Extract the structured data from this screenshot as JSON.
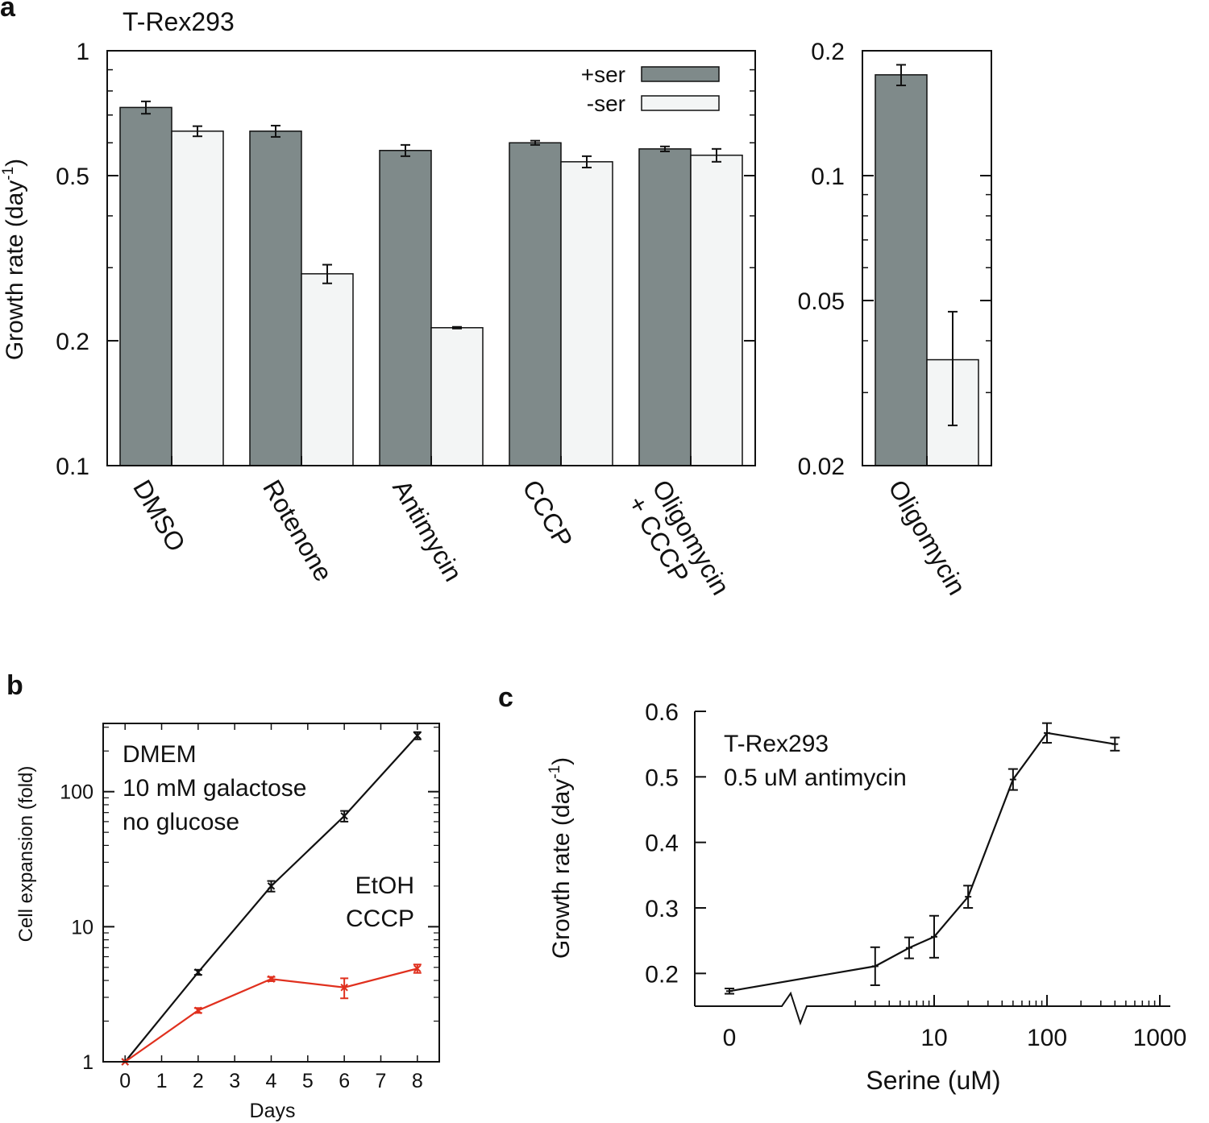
{
  "colors": {
    "plus_ser": "#7f8a8a",
    "minus_ser": "#f3f5f5",
    "etoh": "#111111",
    "cccp": "#e0301e",
    "axis": "#111111"
  },
  "panel_letters": {
    "a": "a",
    "b": "b",
    "c": "c"
  },
  "chart_data": [
    {
      "id": "a_main",
      "type": "bar",
      "title": "T-Rex293",
      "ylabel": "Growth rate (day",
      "ylabel_sup": "-1",
      "ylabel_close": ")",
      "yscale": "log",
      "ylim": [
        0.1,
        1
      ],
      "yticks": [
        0.1,
        0.2,
        0.5,
        1
      ],
      "ytick_labels": [
        "0.1",
        "0.2",
        "0.5",
        "1"
      ],
      "categories": [
        {
          "line1": "DMSO",
          "line2": ""
        },
        {
          "line1": "Rotenone",
          "line2": ""
        },
        {
          "line1": "Antimycin",
          "line2": ""
        },
        {
          "line1": "CCCP",
          "line2": ""
        },
        {
          "line1": "Oligomycin",
          "line2": "+ CCCP"
        }
      ],
      "series": [
        {
          "name": "+ser",
          "values": [
            0.73,
            0.64,
            0.575,
            0.6,
            0.58
          ],
          "errors": [
            0.025,
            0.02,
            0.018,
            0.007,
            0.008
          ]
        },
        {
          "name": "-ser",
          "values": [
            0.64,
            0.29,
            0.215,
            0.54,
            0.56
          ],
          "errors": [
            0.018,
            0.015,
            0.001,
            0.017,
            0.02
          ]
        }
      ],
      "legend_position": "top-right"
    },
    {
      "id": "a_oligo",
      "type": "bar",
      "yscale": "log",
      "ylim": [
        0.02,
        0.2
      ],
      "yticks": [
        0.02,
        0.05,
        0.1,
        0.2
      ],
      "ytick_labels": [
        "0.02",
        "0.05",
        "0.1",
        "0.2"
      ],
      "categories": [
        {
          "line1": "Oligomycin",
          "line2": ""
        }
      ],
      "series": [
        {
          "name": "+ser",
          "values": [
            0.175
          ],
          "errors": [
            0.01
          ]
        },
        {
          "name": "-ser",
          "values": [
            0.036
          ],
          "errors": [
            0.011
          ]
        }
      ]
    },
    {
      "id": "b",
      "type": "line",
      "xlabel": "Days",
      "ylabel": "Cell expansion (fold)",
      "yscale": "log",
      "xlim": [
        -0.6,
        8.6
      ],
      "ylim": [
        1,
        320
      ],
      "xticks": [
        0,
        1,
        2,
        3,
        4,
        5,
        6,
        7,
        8
      ],
      "xtick_labels": [
        "0",
        "1",
        "2",
        "3",
        "4",
        "5",
        "6",
        "7",
        "8"
      ],
      "yticks": [
        1,
        10,
        100
      ],
      "ytick_labels": [
        "1",
        "10",
        "100"
      ],
      "annotation": [
        "DMEM",
        "10 mM galactose",
        "no glucose"
      ],
      "series": [
        {
          "name": "EtOH",
          "x": [
            0,
            2,
            4,
            6,
            8
          ],
          "values": [
            1,
            4.6,
            20,
            66,
            260
          ],
          "errors": [
            0,
            0.2,
            1.8,
            6,
            16
          ]
        },
        {
          "name": "CCCP",
          "x": [
            0,
            2,
            4,
            6,
            8
          ],
          "values": [
            1,
            2.4,
            4.1,
            3.55,
            4.9
          ],
          "errors": [
            0,
            0.1,
            0.15,
            0.6,
            0.35
          ]
        }
      ],
      "legend_position": "center-right"
    },
    {
      "id": "c",
      "type": "line",
      "xlabel": "Serine (uM)",
      "ylabel": "Growth rate (day",
      "ylabel_sup": "-1",
      "ylabel_close": ")",
      "xscale": "log-broken",
      "ylim": [
        0.15,
        0.6
      ],
      "yticks": [
        0.2,
        0.3,
        0.4,
        0.5,
        0.6
      ],
      "ytick_labels": [
        "0.2",
        "0.3",
        "0.4",
        "0.5",
        "0.6"
      ],
      "xtick_labels": [
        "0",
        "10",
        "100",
        "1000"
      ],
      "xtick_values": [
        0,
        10,
        100,
        1000
      ],
      "annotation": [
        "T-Rex293",
        "0.5 uM antimycin"
      ],
      "series": [
        {
          "name": "T-Rex293 0.5 uM antimycin",
          "x": [
            0,
            3,
            6,
            10,
            20,
            50,
            100,
            400
          ],
          "values": [
            0.173,
            0.211,
            0.239,
            0.256,
            0.317,
            0.496,
            0.567,
            0.55
          ],
          "errors": [
            0.004,
            0.029,
            0.016,
            0.032,
            0.017,
            0.016,
            0.015,
            0.01
          ]
        }
      ]
    }
  ]
}
